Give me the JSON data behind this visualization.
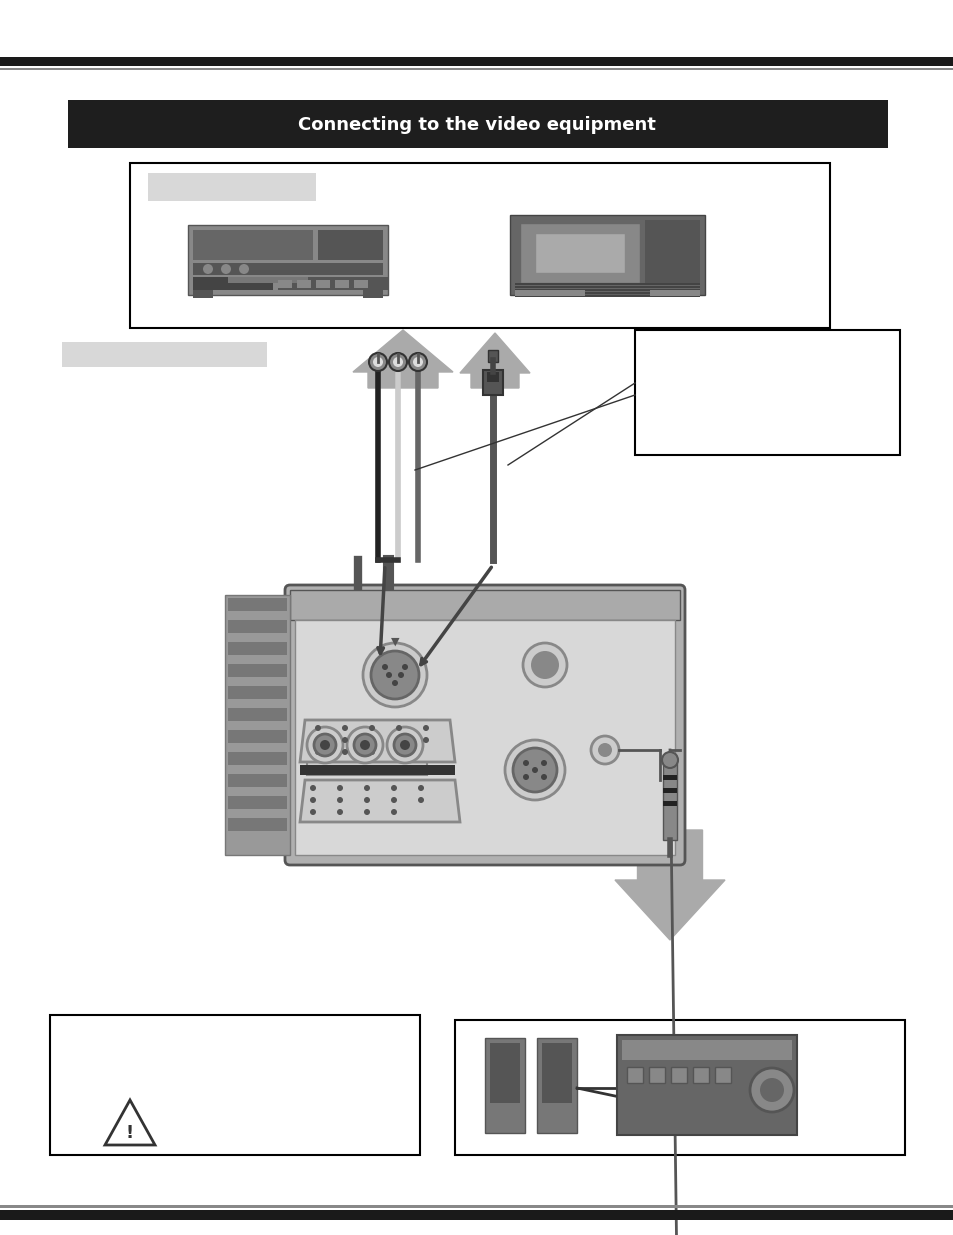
{
  "bg_color": "#ffffff",
  "header_bar_color": "#1e1e1e",
  "header_text_color": "#ffffff",
  "border_top_color": "#1a1a1a",
  "border_bottom_color": "#1a1a1a",
  "device_box_fill": "#ffffff",
  "device_box_edge": "#000000",
  "label_rect_fill": "#d8d8d8",
  "vcr_body": "#888888",
  "vcr_dark": "#555555",
  "vcr_mid": "#666666",
  "vcr_light": "#aaaaaa",
  "dvd_body": "#666666",
  "dvd_screen": "#999999",
  "dvd_stripe": "#888888",
  "arrow_fill": "#aaaaaa",
  "note_box_fill": "#ffffff",
  "note_box_edge": "#000000",
  "cable_dark": "#333333",
  "cable_grey": "#777777",
  "cable_white": "#dddddd",
  "cable_black": "#111111",
  "proj_outer": "#aaaaaa",
  "proj_inner": "#d0d0d0",
  "proj_vent": "#888888",
  "proj_panel": "#e0e0e0",
  "proj_port_ring": "#666666",
  "proj_port_inner": "#444444",
  "vga_body": "#aaaaaa",
  "vga_edge": "#666666",
  "audio_cable": "#888888",
  "warn_box_edge": "#000000",
  "amp_box_edge": "#000000",
  "amp_body": "#666666",
  "amp_dark": "#444444",
  "speaker_color": "#777777"
}
